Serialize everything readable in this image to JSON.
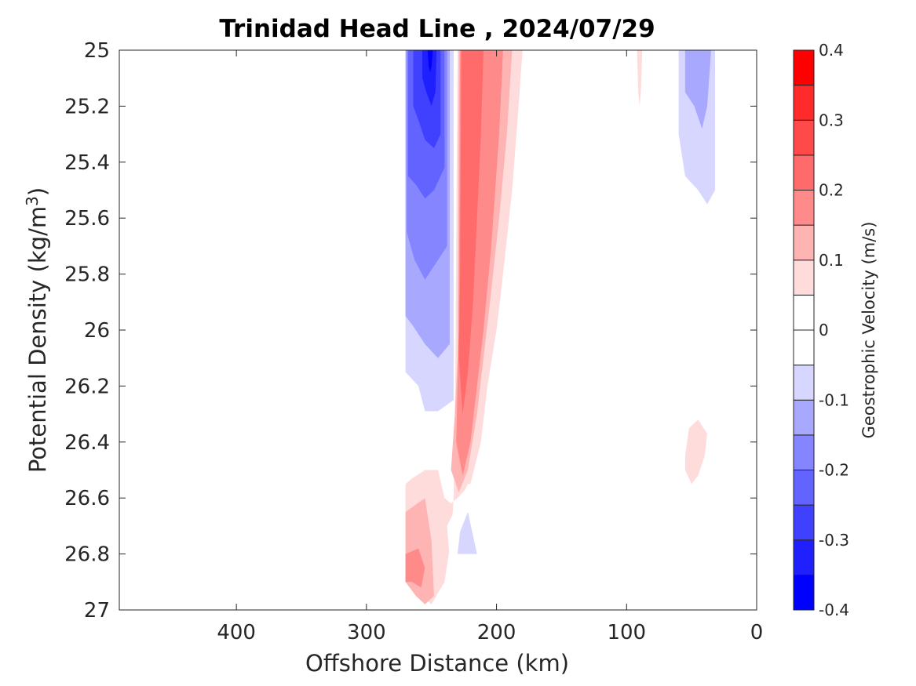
{
  "chart_data": {
    "type": "heatmap",
    "title": "Trinidad Head Line , 2024/07/29",
    "xlabel": "Offshore Distance (km)",
    "ylabel_prefix": "Potential Density (kg/m",
    "ylabel_superscript": "3",
    "ylabel_suffix": ")",
    "colorbar_label": "Geostrophic Velocity (m/s)",
    "x_axis": {
      "range": [
        490,
        0
      ],
      "reversed": true,
      "ticks": [
        400,
        300,
        200,
        100,
        0
      ],
      "tick_labels": [
        "400",
        "300",
        "200",
        "100",
        "0"
      ]
    },
    "y_axis": {
      "range": [
        25,
        27
      ],
      "reversed": true,
      "ticks": [
        25,
        25.2,
        25.4,
        25.6,
        25.8,
        26,
        26.2,
        26.4,
        26.6,
        26.8,
        27
      ],
      "tick_labels": [
        "25",
        "25.2",
        "25.4",
        "25.6",
        "25.8",
        "26",
        "26.2",
        "26.4",
        "26.6",
        "26.8",
        "27"
      ]
    },
    "colorbar": {
      "range": [
        -0.4,
        0.4
      ],
      "levels": [
        -0.4,
        -0.35,
        -0.3,
        -0.25,
        -0.2,
        -0.15,
        -0.1,
        -0.05,
        0,
        0.05,
        0.1,
        0.15,
        0.2,
        0.25,
        0.3,
        0.35,
        0.4
      ],
      "colors": [
        "#0000ff",
        "#2020ff",
        "#4040ff",
        "#6363ff",
        "#8585ff",
        "#a8a8ff",
        "#d6d6ff",
        "#ffffff",
        "#ffffff",
        "#ffdcdc",
        "#ffb4b4",
        "#ff8a8a",
        "#ff6b6b",
        "#ff4a4a",
        "#ff2a2a",
        "#ff0000"
      ],
      "ticks": [
        -0.4,
        -0.3,
        -0.2,
        -0.1,
        0,
        0.1,
        0.2,
        0.3,
        0.4
      ],
      "tick_labels": [
        "-0.4",
        "-0.3",
        "-0.2",
        "-0.1",
        "0",
        "0.1",
        "0.2",
        "0.3",
        "0.4"
      ]
    },
    "contour_regions": [
      {
        "value": -0.1,
        "polygon": [
          [
            270,
            25
          ],
          [
            233,
            25
          ],
          [
            233,
            26.25
          ],
          [
            245,
            26.29
          ],
          [
            255,
            26.29
          ],
          [
            260,
            26.2
          ],
          [
            270,
            26.15
          ]
        ]
      },
      {
        "value": -0.15,
        "polygon": [
          [
            270,
            25
          ],
          [
            236,
            25
          ],
          [
            236,
            26.05
          ],
          [
            245,
            26.1
          ],
          [
            255,
            26.05
          ],
          [
            265,
            25.98
          ],
          [
            270,
            25.95
          ]
        ]
      },
      {
        "value": -0.2,
        "polygon": [
          [
            269,
            25
          ],
          [
            238,
            25
          ],
          [
            238,
            25.7
          ],
          [
            245,
            25.75
          ],
          [
            255,
            25.82
          ],
          [
            263,
            25.75
          ],
          [
            269,
            25.65
          ]
        ]
      },
      {
        "value": -0.25,
        "polygon": [
          [
            268,
            25
          ],
          [
            240,
            25
          ],
          [
            240,
            25.42
          ],
          [
            248,
            25.5
          ],
          [
            255,
            25.53
          ],
          [
            262,
            25.48
          ],
          [
            268,
            25.45
          ]
        ]
      },
      {
        "value": -0.3,
        "polygon": [
          [
            264,
            25
          ],
          [
            243,
            25
          ],
          [
            243,
            25.3
          ],
          [
            248,
            25.35
          ],
          [
            255,
            25.32
          ],
          [
            260,
            25.25
          ],
          [
            264,
            25.2
          ]
        ]
      },
      {
        "value": -0.35,
        "polygon": [
          [
            257,
            25
          ],
          [
            246,
            25
          ],
          [
            247,
            25.15
          ],
          [
            250,
            25.2
          ],
          [
            254,
            25.15
          ],
          [
            257,
            25.1
          ]
        ]
      },
      {
        "value": -0.4,
        "polygon": [
          [
            253,
            25
          ],
          [
            249,
            25
          ],
          [
            250,
            25.06
          ],
          [
            251,
            25.08
          ],
          [
            252,
            25.06
          ]
        ]
      },
      {
        "value": 0.05,
        "polygon": [
          [
            230,
            25
          ],
          [
            180,
            25
          ],
          [
            183,
            25.2
          ],
          [
            188,
            25.5
          ],
          [
            195,
            25.8
          ],
          [
            200,
            26
          ],
          [
            207,
            26.2
          ],
          [
            212,
            26.4
          ],
          [
            220,
            26.55
          ],
          [
            230,
            26.6
          ],
          [
            235,
            26.62
          ],
          [
            240,
            26.6
          ],
          [
            245,
            26.5
          ],
          [
            255,
            26.5
          ],
          [
            265,
            26.53
          ],
          [
            270,
            26.55
          ],
          [
            270,
            26.9
          ],
          [
            250,
            26.98
          ],
          [
            240,
            26.9
          ],
          [
            235,
            26.75
          ],
          [
            233,
            26.6
          ],
          [
            232,
            26.4
          ]
        ]
      },
      {
        "value": 0.1,
        "polygon": [
          [
            229,
            25
          ],
          [
            188,
            25
          ],
          [
            192,
            25.3
          ],
          [
            198,
            25.6
          ],
          [
            205,
            25.9
          ],
          [
            210,
            26.1
          ],
          [
            215,
            26.3
          ],
          [
            222,
            26.5
          ],
          [
            229,
            26.58
          ],
          [
            235,
            26.5
          ],
          [
            232,
            26.3
          ],
          [
            230,
            26.1
          ]
        ]
      },
      {
        "value": 0.15,
        "polygon": [
          [
            228,
            25
          ],
          [
            195,
            25
          ],
          [
            198,
            25.3
          ],
          [
            204,
            25.7
          ],
          [
            210,
            26
          ],
          [
            215,
            26.2
          ],
          [
            220,
            26.4
          ],
          [
            226,
            26.52
          ],
          [
            231,
            26.4
          ],
          [
            230,
            26.2
          ],
          [
            229,
            26
          ]
        ]
      },
      {
        "value": 0.2,
        "polygon": [
          [
            227,
            25
          ],
          [
            210,
            25
          ],
          [
            212,
            25.3
          ],
          [
            215,
            25.6
          ],
          [
            218,
            25.9
          ],
          [
            222,
            26.15
          ],
          [
            226,
            26.3
          ],
          [
            229,
            26.1
          ],
          [
            228,
            25.8
          ]
        ]
      },
      {
        "value": 0.1,
        "polygon": [
          [
            270,
            26.65
          ],
          [
            255,
            26.6
          ],
          [
            250,
            26.75
          ],
          [
            248,
            26.95
          ],
          [
            255,
            26.98
          ],
          [
            262,
            26.95
          ],
          [
            270,
            26.9
          ]
        ]
      },
      {
        "value": 0.15,
        "polygon": [
          [
            270,
            26.8
          ],
          [
            260,
            26.78
          ],
          [
            255,
            26.85
          ],
          [
            258,
            26.92
          ],
          [
            265,
            26.9
          ],
          [
            270,
            26.9
          ]
        ]
      },
      {
        "value": -0.05,
        "polygon": [
          [
            222,
            26.55
          ],
          [
            210,
            26.55
          ],
          [
            205,
            26.7
          ],
          [
            210,
            26.8
          ],
          [
            225,
            26.8
          ],
          [
            232,
            26.75
          ],
          [
            235,
            26.88
          ],
          [
            238,
            26.7
          ]
        ]
      },
      {
        "value": -0.1,
        "polygon": [
          [
            222,
            26.65
          ],
          [
            215,
            26.8
          ],
          [
            230,
            26.8
          ],
          [
            228,
            26.72
          ]
        ]
      },
      {
        "value": 0.05,
        "polygon": [
          [
            92,
            25
          ],
          [
            88,
            25
          ],
          [
            89,
            25.15
          ],
          [
            90,
            25.2
          ],
          [
            91,
            25.15
          ]
        ]
      },
      {
        "value": -0.05,
        "polygon": [
          [
            65,
            25
          ],
          [
            30,
            25
          ],
          [
            30,
            25.6
          ],
          [
            35,
            25.75
          ],
          [
            40,
            25.82
          ],
          [
            45,
            25.75
          ],
          [
            55,
            25.65
          ],
          [
            65,
            25.6
          ]
        ]
      },
      {
        "value": -0.1,
        "polygon": [
          [
            60,
            25
          ],
          [
            32,
            25
          ],
          [
            32,
            25.5
          ],
          [
            38,
            25.55
          ],
          [
            45,
            25.5
          ],
          [
            55,
            25.45
          ],
          [
            60,
            25.3
          ]
        ]
      },
      {
        "value": -0.15,
        "polygon": [
          [
            55,
            25
          ],
          [
            35,
            25
          ],
          [
            38,
            25.2
          ],
          [
            42,
            25.28
          ],
          [
            48,
            25.2
          ],
          [
            55,
            25.15
          ]
        ]
      },
      {
        "value": 0.05,
        "polygon": [
          [
            52,
            26.35
          ],
          [
            45,
            26.32
          ],
          [
            38,
            26.37
          ],
          [
            40,
            26.45
          ],
          [
            45,
            26.52
          ],
          [
            50,
            26.55
          ],
          [
            55,
            26.5
          ],
          [
            55,
            26.45
          ]
        ]
      }
    ]
  }
}
